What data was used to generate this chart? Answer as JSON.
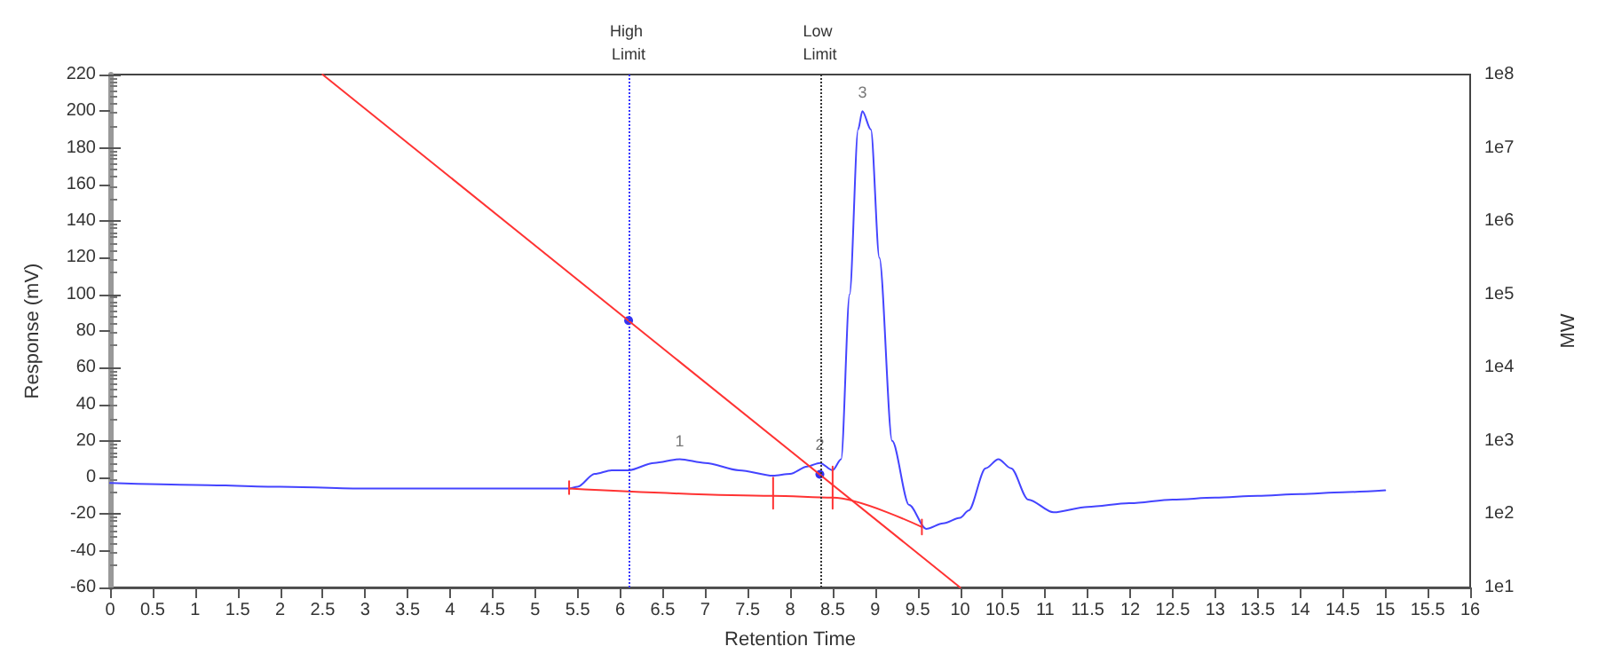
{
  "chart_data": {
    "type": "line",
    "xlabel": "Retention Time",
    "ylabel": "Response (mV)",
    "y2label": "MW",
    "xlim": [
      0,
      16
    ],
    "xticks": [
      0,
      0.5,
      1,
      1.5,
      2,
      2.5,
      3,
      3.5,
      4,
      4.5,
      5,
      5.5,
      6,
      6.5,
      7,
      7.5,
      8,
      8.5,
      9,
      9.5,
      10,
      10.5,
      11,
      11.5,
      12,
      12.5,
      13,
      13.5,
      14,
      14.5,
      15,
      15.5,
      16
    ],
    "ylim": [
      -60,
      220
    ],
    "yticks": [
      -60,
      -40,
      -20,
      0,
      20,
      40,
      60,
      80,
      100,
      120,
      140,
      160,
      180,
      200,
      220
    ],
    "y2lim": [
      10,
      100000000
    ],
    "y2ticks": [
      {
        "value": 10,
        "label": "1e1"
      },
      {
        "value": 100,
        "label": "1e2"
      },
      {
        "value": 1000,
        "label": "1e3"
      },
      {
        "value": 10000,
        "label": "1e4"
      },
      {
        "value": 100000,
        "label": "1e5"
      },
      {
        "value": 1000000,
        "label": "1e6"
      },
      {
        "value": 10000000,
        "label": "1e7"
      },
      {
        "value": 100000000,
        "label": "1e8"
      }
    ],
    "log": "y2",
    "grid": false,
    "marker": "none",
    "line_style": "solid",
    "series": [
      {
        "color": "#4444ff",
        "x": [
          0,
          1,
          2,
          3,
          4,
          5,
          5.4,
          5.5,
          5.7,
          5.9,
          6.1,
          6.4,
          6.7,
          7,
          7.4,
          7.8,
          8.0,
          8.2,
          8.35,
          8.5,
          8.6,
          8.7,
          8.8,
          8.85,
          8.95,
          9.05,
          9.2,
          9.4,
          9.6,
          9.8,
          10.0,
          10.1,
          10.3,
          10.45,
          10.6,
          10.8,
          11.1,
          11.5,
          12,
          12.5,
          13,
          13.5,
          14,
          14.5,
          15
        ],
        "values": [
          -3,
          -4,
          -5,
          -6,
          -6,
          -6,
          -6,
          -5,
          2,
          4,
          4,
          8,
          10,
          8,
          4,
          1,
          2,
          6,
          8,
          4,
          10,
          100,
          190,
          200,
          190,
          120,
          20,
          -15,
          -28,
          -25,
          -22,
          -18,
          5,
          10,
          5,
          -12,
          -19,
          -16,
          -14,
          -12,
          -11,
          -10,
          -9,
          -8,
          -7
        ]
      },
      {
        "color": "#ff3333",
        "x": [
          5.4,
          7.8,
          8.5,
          9.55
        ],
        "values": [
          -6,
          -10,
          -11,
          -27
        ]
      },
      {
        "color": "#ff3333",
        "x": [
          5.4,
          5.4
        ],
        "values": [
          -9,
          -2
        ]
      },
      {
        "color": "#ff3333",
        "x": [
          7.8,
          7.8
        ],
        "values": [
          -17,
          0
        ]
      },
      {
        "color": "#ff3333",
        "x": [
          8.5,
          8.5
        ],
        "values": [
          -17,
          6
        ]
      },
      {
        "color": "#ff3333",
        "x": [
          9.55,
          9.55
        ],
        "values": [
          -31,
          -23
        ]
      },
      {
        "color": "#ff3333",
        "axis": "y2",
        "x": [
          2.5,
          10
        ],
        "values": [
          100000000,
          10
        ]
      },
      {
        "type": "scatter",
        "marker": "circle",
        "color": "#0000ee",
        "axis": "y2",
        "x": [
          6.1,
          8.35
        ],
        "values": [
          44000,
          350
        ]
      }
    ],
    "ref_lines": [
      {
        "axis": "x",
        "value": 6.1,
        "label": "High Limit",
        "color": "#3333ff",
        "line_style": "dotted"
      },
      {
        "axis": "x",
        "value": 8.35,
        "label": "Low Limit",
        "color": "#333333",
        "line_style": "dotted"
      }
    ],
    "annotations": [
      {
        "text": "1",
        "x": 6.7,
        "y": 10
      },
      {
        "text": "2",
        "x": 8.35,
        "y": 8
      },
      {
        "text": "3",
        "x": 8.85,
        "y": 200
      }
    ]
  }
}
